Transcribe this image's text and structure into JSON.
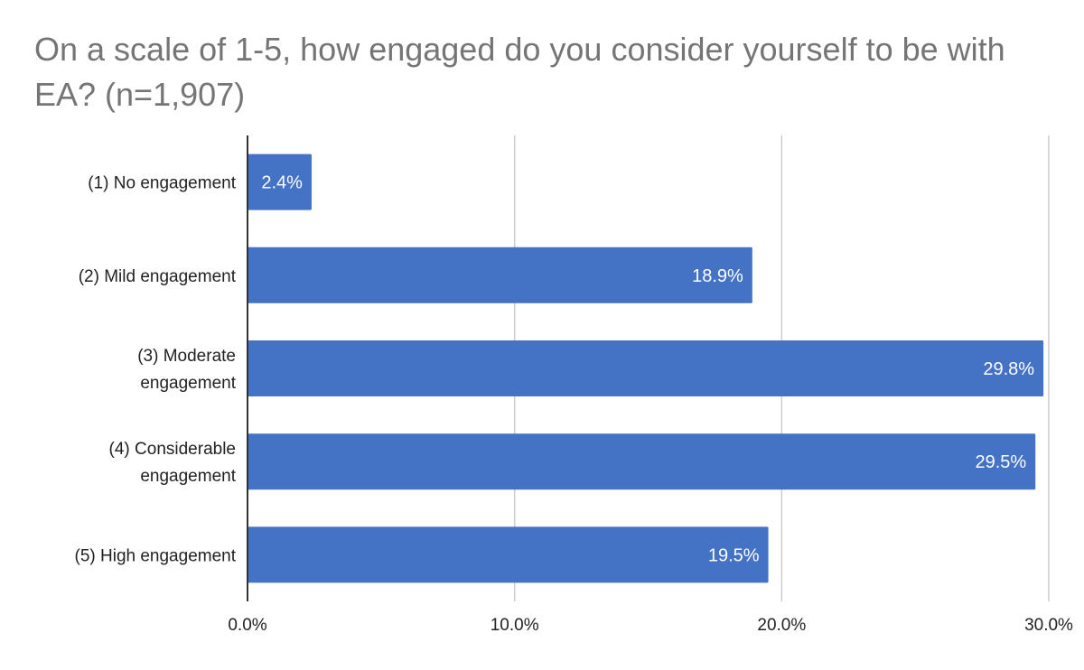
{
  "chart_data": {
    "type": "bar",
    "orientation": "horizontal",
    "title": "On a scale of 1-5, how engaged do you consider yourself to be with EA? (n=1,907)",
    "categories": [
      "(1) No engagement",
      "(2) Mild engagement",
      "(3) Moderate engagement",
      "(4) Considerable engagement",
      "(5) High engagement"
    ],
    "category_lines": [
      [
        "(1) No engagement"
      ],
      [
        "(2) Mild engagement"
      ],
      [
        "(3) Moderate",
        "engagement"
      ],
      [
        "(4) Considerable",
        "engagement"
      ],
      [
        "(5) High engagement"
      ]
    ],
    "values": [
      2.4,
      18.9,
      29.8,
      29.5,
      19.5
    ],
    "data_labels": [
      "2.4%",
      "18.9%",
      "29.8%",
      "29.5%",
      "19.5%"
    ],
    "xlim": [
      0,
      30
    ],
    "x_ticks": [
      0,
      10,
      20,
      30
    ],
    "x_tick_labels": [
      "0.0%",
      "10.0%",
      "20.0%",
      "30.0%"
    ],
    "xlabel": "",
    "ylabel": "",
    "grid": "vertical",
    "legend": "none",
    "bar_color": "#4472C4",
    "grid_color": "#cccccc",
    "axis_color": "#333333"
  }
}
